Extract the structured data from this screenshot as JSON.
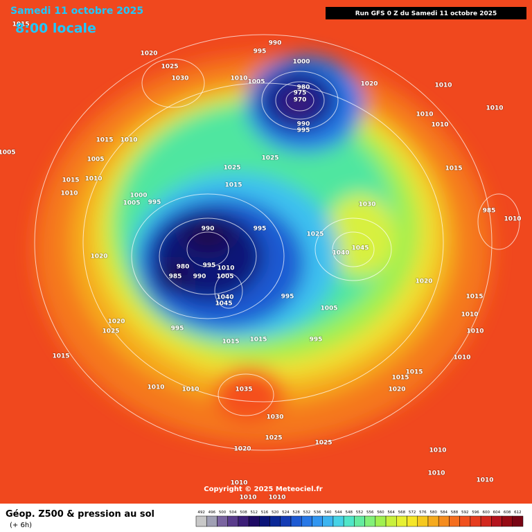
{
  "header": {
    "date": "Samedi 11 octobre 2025",
    "time": "8:00 locale",
    "run": "Run GFS 0 Z du Samedi 11 octobre 2025"
  },
  "copyright": "Copyright © 2025 Meteociel.fr",
  "footer": {
    "title": "Géop. Z500 & pression au sol",
    "lead": "(+ 6h)"
  },
  "isobar_labels": [
    1015,
    1020,
    1025,
    1030,
    990,
    995,
    1000,
    1010,
    1005,
    980,
    975,
    970,
    1020,
    1010,
    1010,
    1010,
    1010,
    990,
    995,
    1015,
    1010,
    1005,
    1005,
    1025,
    1025,
    1015,
    1015,
    1010,
    1010,
    1015,
    1030,
    1000,
    1005,
    995,
    985,
    1010,
    990,
    995,
    1025,
    1045,
    1040,
    1020,
    980,
    995,
    1010,
    985,
    990,
    1005,
    1040,
    1045,
    995,
    1020,
    1015,
    1010,
    1005,
    1020,
    1025,
    995,
    1010,
    995,
    1015,
    1015,
    1015,
    1010,
    1015,
    1015,
    1010,
    1010,
    1020,
    1035,
    1030,
    1025,
    1025,
    1020,
    1010,
    1010,
    1010,
    1010,
    1010,
    1010
  ],
  "colorbar": {
    "values": [
      492,
      496,
      500,
      504,
      508,
      512,
      516,
      520,
      524,
      528,
      532,
      536,
      540,
      544,
      548,
      552,
      556,
      560,
      564,
      568,
      572,
      576,
      580,
      584,
      588,
      592,
      596,
      600,
      604,
      608,
      612
    ],
    "colors": [
      "#c8c8c8",
      "#a0a0b4",
      "#7a64a0",
      "#5a3c8c",
      "#3c1e78",
      "#1e0a64",
      "#0a1478",
      "#0a2896",
      "#143cb4",
      "#1e5ad2",
      "#2878e6",
      "#3296f0",
      "#3cb4f0",
      "#46d2e6",
      "#50e6c8",
      "#64eba0",
      "#82f078",
      "#a0f050",
      "#c8f03c",
      "#e6f032",
      "#f5e628",
      "#f5c81e",
      "#f5aa1e",
      "#f58c1e",
      "#f56e1e",
      "#f0501e",
      "#e63c1e",
      "#d2281e",
      "#b4141e",
      "#960a14",
      "#780514"
    ]
  }
}
